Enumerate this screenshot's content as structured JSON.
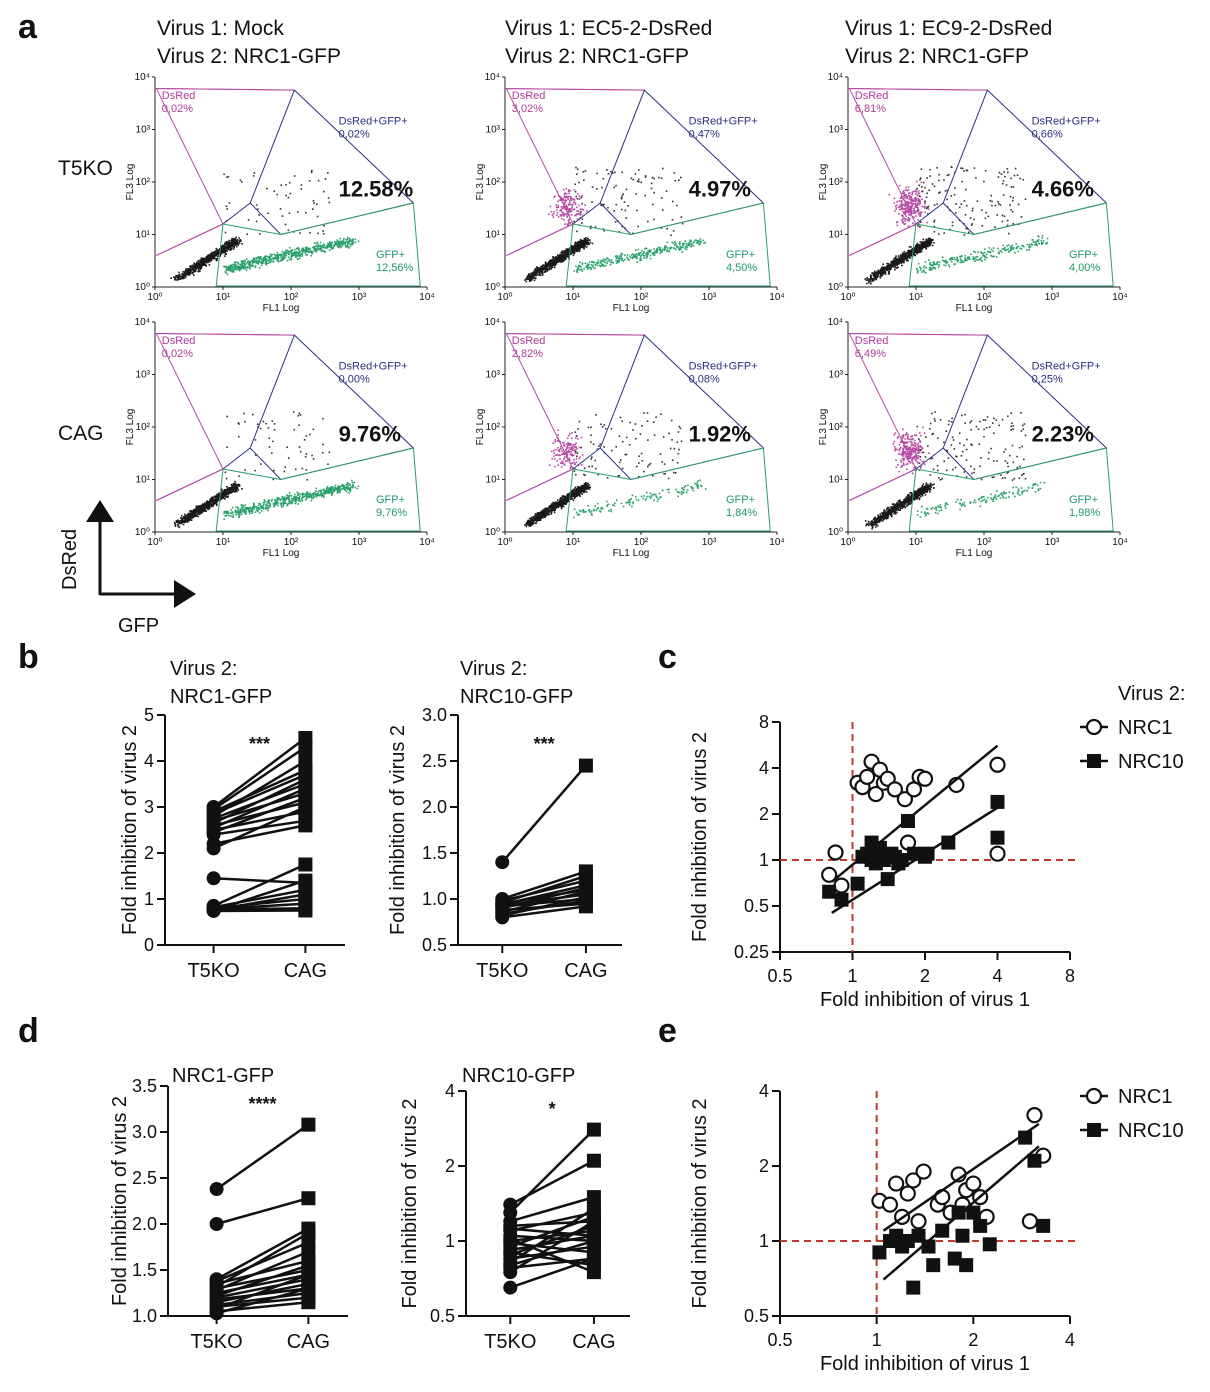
{
  "panels": {
    "a": {
      "letter": "a",
      "column_headers": [
        [
          "Virus 1: Mock",
          "Virus 2: NRC1-GFP"
        ],
        [
          "Virus 1: EC5-2-DsRed",
          "Virus 2: NRC1-GFP"
        ],
        [
          "Virus 1: EC9-2-DsRed",
          "Virus 2: NRC1-GFP"
        ]
      ],
      "row_labels": [
        "T5KO",
        "CAG"
      ],
      "flow_labels": {
        "gate_dsred": "DsRed",
        "gate_double": "DsRed+GFP+",
        "gate_gfp": "GFP+",
        "x_axis": "FL1 Log",
        "y_axis": "FL3 Log",
        "ticks": [
          "10⁰",
          "10¹",
          "10²",
          "10³",
          "10⁴"
        ]
      },
      "plots": [
        {
          "dsred": "0,02%",
          "double": "0,02%",
          "gfp": "12,56%",
          "big": "12.58%"
        },
        {
          "dsred": "3,02%",
          "double": "0,47%",
          "gfp": "4,50%",
          "big": "4.97%"
        },
        {
          "dsred": "6,81%",
          "double": "0,66%",
          "gfp": "4,00%",
          "big": "4.66%"
        },
        {
          "dsred": "0,02%",
          "double": "0,00%",
          "gfp": "9,76%",
          "big": "9.76%"
        },
        {
          "dsred": "2,82%",
          "double": "0,08%",
          "gfp": "1,84%",
          "big": "1.92%"
        },
        {
          "dsred": "6,49%",
          "double": "0,25%",
          "gfp": "1,98%",
          "big": "2.23%"
        }
      ],
      "axes_arrows": {
        "y": "DsRed",
        "x": "GFP"
      }
    },
    "b": {
      "letter": "b"
    },
    "c": {
      "letter": "c"
    },
    "d": {
      "letter": "d"
    },
    "e": {
      "letter": "e"
    }
  },
  "chart_data": [
    {
      "id": "b1",
      "type": "line",
      "title_lines": [
        "Virus 2:",
        "NRC1-GFP"
      ],
      "ylabel": "Fold inhibition of virus 2",
      "categories": [
        "T5KO",
        "CAG"
      ],
      "ylim": [
        0,
        5
      ],
      "yticks": [
        0,
        1,
        2,
        3,
        4,
        5
      ],
      "yticklabels": [
        "0",
        "1",
        "2",
        "3",
        "4",
        "5"
      ],
      "significance": "***",
      "pairs": [
        [
          3.0,
          4.5
        ],
        [
          2.95,
          4.3
        ],
        [
          2.9,
          3.8
        ],
        [
          2.85,
          3.7
        ],
        [
          2.8,
          4.0
        ],
        [
          2.75,
          3.5
        ],
        [
          2.7,
          3.3
        ],
        [
          2.65,
          3.6
        ],
        [
          2.6,
          3.1
        ],
        [
          2.55,
          3.4
        ],
        [
          2.5,
          2.9
        ],
        [
          2.45,
          3.2
        ],
        [
          2.4,
          2.7
        ],
        [
          2.2,
          2.6
        ],
        [
          2.1,
          3.0
        ],
        [
          1.45,
          1.35
        ],
        [
          0.85,
          1.75
        ],
        [
          0.82,
          1.2
        ],
        [
          0.8,
          1.0
        ],
        [
          0.78,
          0.9
        ],
        [
          0.77,
          0.8
        ],
        [
          0.76,
          1.1
        ],
        [
          0.75,
          1.4
        ],
        [
          0.74,
          0.75
        ]
      ]
    },
    {
      "id": "b2",
      "type": "line",
      "title_lines": [
        "Virus 2:",
        "NRC10-GFP"
      ],
      "ylabel": "Fold inhibition of virus 2",
      "categories": [
        "T5KO",
        "CAG"
      ],
      "ylim": [
        0.5,
        3.0
      ],
      "yticks": [
        0.5,
        1.0,
        1.5,
        2.0,
        2.5,
        3.0
      ],
      "yticklabels": [
        "0.5",
        "1.0",
        "1.5",
        "2.0",
        "2.5",
        "3.0"
      ],
      "significance": "***",
      "pairs": [
        [
          1.4,
          2.45
        ],
        [
          1.0,
          1.3
        ],
        [
          0.98,
          1.2
        ],
        [
          0.96,
          1.25
        ],
        [
          0.95,
          1.1
        ],
        [
          0.94,
          1.15
        ],
        [
          0.93,
          1.05
        ],
        [
          0.92,
          1.0
        ],
        [
          0.9,
          1.12
        ],
        [
          0.88,
          0.95
        ],
        [
          0.86,
          1.08
        ],
        [
          0.84,
          0.98
        ],
        [
          0.82,
          1.02
        ],
        [
          0.8,
          0.92
        ]
      ]
    },
    {
      "id": "c",
      "type": "scatter",
      "xlabel": "Fold inhibition of virus 1",
      "ylabel": "Fold inhibition of virus 2",
      "xscale": "log2",
      "yscale": "log2",
      "xlim": [
        0.5,
        8
      ],
      "ylim": [
        0.25,
        8
      ],
      "xticks": [
        0.5,
        1,
        2,
        4,
        8
      ],
      "xticklabels": [
        "0.5",
        "1",
        "2",
        "4",
        "8"
      ],
      "yticks": [
        0.25,
        0.5,
        1,
        2,
        4,
        8
      ],
      "yticklabels": [
        "0.25",
        "0.5",
        "1",
        "2",
        "4",
        "8"
      ],
      "legend_title": "Virus 2:",
      "ref_lines": {
        "x": 1,
        "y": 1
      },
      "series": [
        {
          "name": "NRC1",
          "marker": "open-circle",
          "points": [
            [
              0.8,
              0.8
            ],
            [
              0.85,
              1.12
            ],
            [
              0.9,
              0.68
            ],
            [
              1.05,
              3.2
            ],
            [
              1.1,
              3.0
            ],
            [
              1.15,
              3.5
            ],
            [
              1.2,
              4.4
            ],
            [
              1.25,
              2.7
            ],
            [
              1.3,
              3.9
            ],
            [
              1.35,
              3.2
            ],
            [
              1.4,
              3.4
            ],
            [
              1.5,
              2.9
            ],
            [
              1.65,
              2.5
            ],
            [
              1.8,
              2.9
            ],
            [
              1.9,
              3.5
            ],
            [
              2.0,
              3.4
            ],
            [
              2.7,
              3.1
            ],
            [
              4.0,
              4.2
            ],
            [
              4.0,
              1.1
            ],
            [
              1.7,
              1.3
            ]
          ],
          "fit": [
            [
              0.82,
              0.72
            ],
            [
              4.0,
              5.6
            ]
          ]
        },
        {
          "name": "NRC10",
          "marker": "filled-square",
          "points": [
            [
              0.8,
              0.62
            ],
            [
              0.9,
              0.55
            ],
            [
              1.05,
              0.7
            ],
            [
              1.1,
              1.05
            ],
            [
              1.15,
              1.1
            ],
            [
              1.2,
              1.0
            ],
            [
              1.25,
              0.95
            ],
            [
              1.3,
              1.2
            ],
            [
              1.35,
              1.0
            ],
            [
              1.4,
              0.75
            ],
            [
              1.45,
              1.1
            ],
            [
              1.5,
              1.05
            ],
            [
              1.55,
              0.95
            ],
            [
              1.6,
              1.0
            ],
            [
              1.7,
              1.8
            ],
            [
              1.8,
              1.1
            ],
            [
              2.0,
              1.05
            ],
            [
              2.05,
              1.1
            ],
            [
              2.5,
              1.3
            ],
            [
              4.0,
              2.4
            ],
            [
              4.0,
              1.4
            ],
            [
              1.2,
              1.3
            ]
          ],
          "fit": [
            [
              0.82,
              0.45
            ],
            [
              4.0,
              2.2
            ]
          ]
        }
      ]
    },
    {
      "id": "d1",
      "type": "line",
      "title_lines": [
        "NRC1-GFP"
      ],
      "ylabel": "Fold inhibition of virus 2",
      "categories": [
        "T5KO",
        "CAG"
      ],
      "ylim": [
        1.0,
        3.5
      ],
      "yticks": [
        1.0,
        1.5,
        2.0,
        2.5,
        3.0,
        3.5
      ],
      "yticklabels": [
        "1.0",
        "1.5",
        "2.0",
        "2.5",
        "3.0",
        "3.5"
      ],
      "significance": "****",
      "pairs": [
        [
          2.38,
          3.08
        ],
        [
          2.0,
          2.28
        ],
        [
          1.4,
          1.95
        ],
        [
          1.38,
          1.8
        ],
        [
          1.35,
          1.6
        ],
        [
          1.32,
          1.9
        ],
        [
          1.3,
          1.5
        ],
        [
          1.28,
          1.7
        ],
        [
          1.25,
          1.45
        ],
        [
          1.22,
          1.55
        ],
        [
          1.2,
          1.4
        ],
        [
          1.18,
          1.3
        ],
        [
          1.15,
          1.35
        ],
        [
          1.12,
          1.25
        ],
        [
          1.1,
          1.2
        ],
        [
          1.08,
          1.45
        ],
        [
          1.05,
          1.15
        ],
        [
          1.03,
          1.3
        ]
      ]
    },
    {
      "id": "d2",
      "type": "line",
      "title_lines": [
        "NRC10-GFP"
      ],
      "ylabel": "Fold inhibition of virus 2",
      "categories": [
        "T5KO",
        "CAG"
      ],
      "yscale": "log2",
      "ylim": [
        0.5,
        4
      ],
      "yticks": [
        0.5,
        1,
        2,
        4
      ],
      "yticklabels": [
        "0.5",
        "1",
        "2",
        "4"
      ],
      "significance": "*",
      "pairs": [
        [
          1.4,
          2.1
        ],
        [
          1.3,
          2.8
        ],
        [
          1.2,
          1.5
        ],
        [
          1.15,
          1.2
        ],
        [
          1.1,
          1.3
        ],
        [
          1.05,
          1.0
        ],
        [
          1.0,
          1.1
        ],
        [
          0.98,
          0.9
        ],
        [
          0.95,
          1.25
        ],
        [
          0.92,
          1.05
        ],
        [
          0.9,
          0.8
        ],
        [
          0.88,
          1.15
        ],
        [
          0.85,
          0.95
        ],
        [
          0.82,
          1.35
        ],
        [
          0.8,
          1.0
        ],
        [
          0.78,
          0.85
        ],
        [
          0.75,
          1.2
        ],
        [
          0.65,
          0.85
        ],
        [
          1.12,
          1.05
        ],
        [
          1.02,
          0.75
        ]
      ]
    },
    {
      "id": "e",
      "type": "scatter",
      "xlabel": "Fold inhibition of virus 1",
      "ylabel": "Fold inhibition of virus 2",
      "xscale": "log2",
      "yscale": "log2",
      "xlim": [
        0.5,
        4
      ],
      "ylim": [
        0.5,
        4
      ],
      "xticks": [
        0.5,
        1,
        2,
        4
      ],
      "xticklabels": [
        "0.5",
        "1",
        "2",
        "4"
      ],
      "yticks": [
        0.5,
        1,
        2,
        4
      ],
      "yticklabels": [
        "0.5",
        "1",
        "2",
        "4"
      ],
      "ref_lines": {
        "x": 1,
        "y": 1
      },
      "series": [
        {
          "name": "NRC1",
          "marker": "open-circle",
          "points": [
            [
              1.02,
              1.45
            ],
            [
              1.1,
              1.4
            ],
            [
              1.15,
              1.7
            ],
            [
              1.2,
              1.25
            ],
            [
              1.25,
              1.55
            ],
            [
              1.3,
              1.75
            ],
            [
              1.35,
              1.2
            ],
            [
              1.4,
              1.9
            ],
            [
              1.55,
              1.4
            ],
            [
              1.6,
              1.5
            ],
            [
              1.7,
              1.3
            ],
            [
              1.8,
              1.85
            ],
            [
              1.85,
              1.4
            ],
            [
              1.9,
              1.6
            ],
            [
              2.0,
              1.7
            ],
            [
              2.1,
              1.5
            ],
            [
              2.2,
              1.25
            ],
            [
              3.0,
              1.2
            ],
            [
              3.1,
              3.2
            ],
            [
              3.3,
              2.2
            ]
          ],
          "fit": [
            [
              1.05,
              1.1
            ],
            [
              3.2,
              2.95
            ]
          ]
        },
        {
          "name": "NRC10",
          "marker": "filled-square",
          "points": [
            [
              1.02,
              0.9
            ],
            [
              1.1,
              1.0
            ],
            [
              1.15,
              1.05
            ],
            [
              1.2,
              0.95
            ],
            [
              1.25,
              1.0
            ],
            [
              1.3,
              0.65
            ],
            [
              1.35,
              1.05
            ],
            [
              1.45,
              0.95
            ],
            [
              1.5,
              0.8
            ],
            [
              1.6,
              1.1
            ],
            [
              1.75,
              0.85
            ],
            [
              1.8,
              1.3
            ],
            [
              1.85,
              1.05
            ],
            [
              1.9,
              0.8
            ],
            [
              2.0,
              1.3
            ],
            [
              2.1,
              1.15
            ],
            [
              2.25,
              0.97
            ],
            [
              2.9,
              2.6
            ],
            [
              3.1,
              2.1
            ],
            [
              3.3,
              1.15
            ]
          ],
          "fit": [
            [
              1.05,
              0.7
            ],
            [
              3.2,
              2.4
            ]
          ]
        }
      ]
    }
  ]
}
